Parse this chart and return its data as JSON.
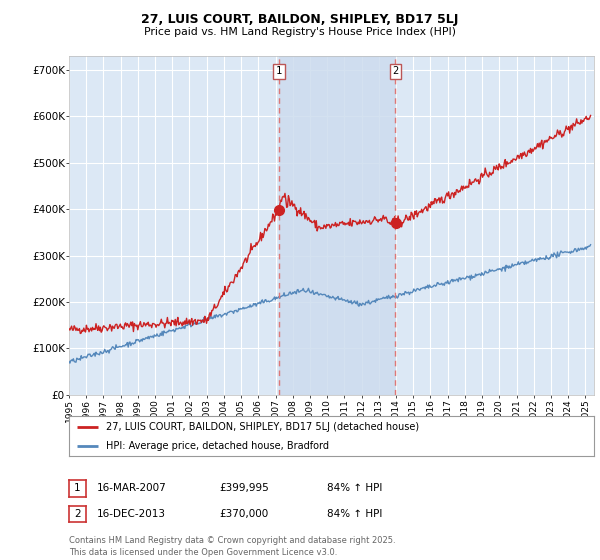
{
  "title": "27, LUIS COURT, BAILDON, SHIPLEY, BD17 5LJ",
  "subtitle": "Price paid vs. HM Land Registry's House Price Index (HPI)",
  "ylabel_ticks": [
    "£0",
    "£100K",
    "£200K",
    "£300K",
    "£400K",
    "£500K",
    "£600K",
    "£700K"
  ],
  "ytick_values": [
    0,
    100000,
    200000,
    300000,
    400000,
    500000,
    600000,
    700000
  ],
  "ylim": [
    0,
    730000
  ],
  "background_color": "#ffffff",
  "plot_bg_color": "#dce8f5",
  "grid_color": "#ffffff",
  "red_color": "#cc2222",
  "blue_color": "#5588bb",
  "vline_color": "#dd7777",
  "marker1_date": 2007.21,
  "marker2_date": 2013.96,
  "marker1_label": "1",
  "marker2_label": "2",
  "legend_label_red": "27, LUIS COURT, BAILDON, SHIPLEY, BD17 5LJ (detached house)",
  "legend_label_blue": "HPI: Average price, detached house, Bradford",
  "table_row1": [
    "1",
    "16-MAR-2007",
    "£399,995",
    "84% ↑ HPI"
  ],
  "table_row2": [
    "2",
    "16-DEC-2013",
    "£370,000",
    "84% ↑ HPI"
  ],
  "footer": "Contains HM Land Registry data © Crown copyright and database right 2025.\nThis data is licensed under the Open Government Licence v3.0.",
  "shade_xmin": 2007.21,
  "shade_xmax": 2013.96,
  "xmin": 1995,
  "xmax": 2025.5
}
